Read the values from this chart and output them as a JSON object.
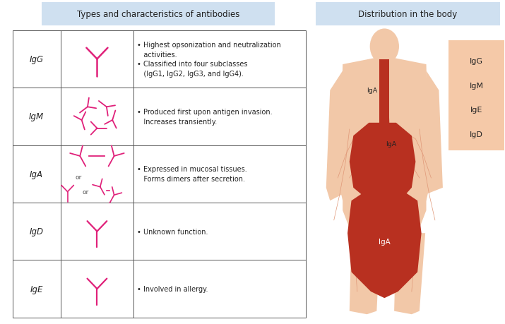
{
  "title_left": "Types and characteristics of antibodies",
  "title_right": "Distribution in the body",
  "title_bg": "#cfe0f0",
  "rows": [
    {
      "label": "IgG",
      "description": "• Highest opsonization and neutralization\n   activities.\n• Classified into four subclasses\n   (IgG1, IgG2, IgG3, and IgG4)."
    },
    {
      "label": "IgM",
      "description": "• Produced first upon antigen invasion.\n   Increases transiently."
    },
    {
      "label": "IgA",
      "description": "• Expressed in mucosal tissues.\n   Forms dimers after secretion."
    },
    {
      "label": "IgD",
      "description": "• Unknown function."
    },
    {
      "label": "IgE",
      "description": "• Involved in allergy."
    }
  ],
  "antibody_color": "#e0217a",
  "legend_labels": [
    "IgG",
    "IgM",
    "IgE",
    "IgD"
  ],
  "legend_box_color": "#f5c9a8",
  "body_light": "#f2c8a8",
  "body_dark": "#b83020",
  "body_medium": "#d4724a",
  "body_vessel": "#e09878",
  "table_border_color": "#555555",
  "bg_color": "#ffffff",
  "fig_width": 7.15,
  "fig_height": 4.6,
  "dpi": 100
}
